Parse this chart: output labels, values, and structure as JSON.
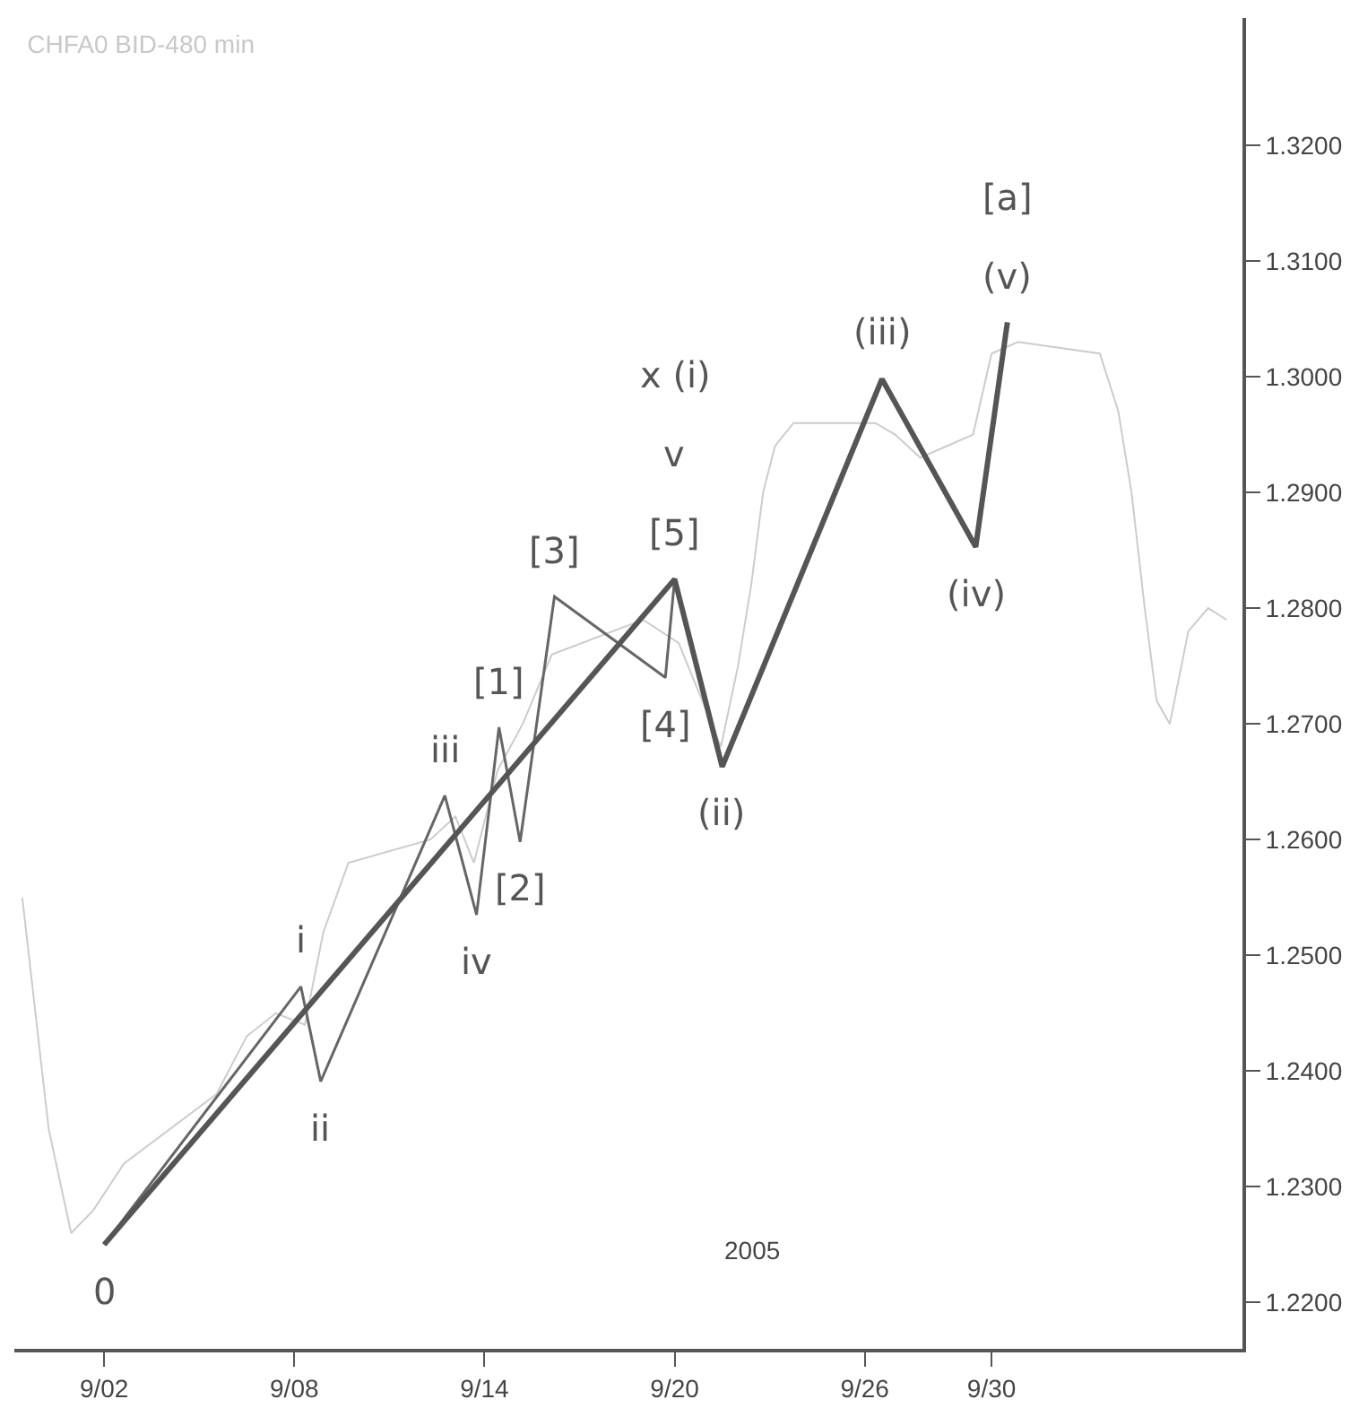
{
  "chart_data": {
    "type": "line",
    "title": "CHFA0 BID-480 min",
    "xlim": [
      "2005-08-30T04:00",
      "2005-10-07T22:00"
    ],
    "xticks": [
      {
        "value": "2005-09-02",
        "label": "9/02"
      },
      {
        "value": "2005-09-08",
        "label": "9/08"
      },
      {
        "value": "2005-09-14",
        "label": "9/14"
      },
      {
        "value": "2005-09-20",
        "label": "9/20"
      },
      {
        "value": "2005-09-26",
        "label": "9/26"
      },
      {
        "value": "2005-09-30",
        "label": "9/30"
      }
    ],
    "ylim": [
      1.216,
      1.331
    ],
    "yticks": [
      {
        "value": 1.22,
        "label": "1.2200"
      },
      {
        "value": 1.23,
        "label": "1.2300"
      },
      {
        "value": 1.24,
        "label": "1.2400"
      },
      {
        "value": 1.25,
        "label": "1.2500"
      },
      {
        "value": 1.26,
        "label": "1.2600"
      },
      {
        "value": 1.27,
        "label": "1.2700"
      },
      {
        "value": 1.28,
        "label": "1.2800"
      },
      {
        "value": 1.29,
        "label": "1.2900"
      },
      {
        "value": 1.3,
        "label": "1.3000"
      },
      {
        "value": 1.31,
        "label": "1.3100"
      },
      {
        "value": 1.32,
        "label": "1.3200"
      }
    ],
    "grid": false,
    "marker": "none",
    "line_style": "solid",
    "series": [
      {
        "color": "#cccccc",
        "x": [
          "2005-08-30T10:00",
          "2005-08-31T06:00",
          "2005-08-31T23:00",
          "2005-09-01T16:00",
          "2005-09-02T15:00",
          "2005-09-05T13:00",
          "2005-09-06T12:00",
          "2005-09-07T10:00",
          "2005-09-08T08:00",
          "2005-09-08T22:00",
          "2005-09-09T17:00",
          "2005-09-12T07:00",
          "2005-09-13T02:00",
          "2005-09-13T16:00",
          "2005-09-14T10:00",
          "2005-09-15T05:00",
          "2005-09-16T03:00",
          "2005-09-19T00:00",
          "2005-09-20T03:00",
          "2005-09-20T21:00",
          "2005-09-21T11:00",
          "2005-09-22T00:00",
          "2005-09-22T10:00",
          "2005-09-22T19:00",
          "2005-09-23T04:00",
          "2005-09-23T18:00",
          "2005-09-26T08:00",
          "2005-09-26T23:00",
          "2005-09-27T18:00",
          "2005-09-28T14:00",
          "2005-09-29T10:00",
          "2005-09-30T00:00",
          "2005-09-30T20:00",
          "2005-10-03T10:00",
          "2005-10-04T00:00",
          "2005-10-04T10:00",
          "2005-10-04T20:00",
          "2005-10-05T05:00",
          "2005-10-05T15:00",
          "2005-10-06T05:00",
          "2005-10-06T20:00",
          "2005-10-07T10:00"
        ],
        "values": [
          1.255,
          1.235,
          1.226,
          1.228,
          1.232,
          1.238,
          1.243,
          1.245,
          1.244,
          1.252,
          1.258,
          1.26,
          1.262,
          1.258,
          1.266,
          1.27,
          1.276,
          1.279,
          1.277,
          1.272,
          1.268,
          1.275,
          1.282,
          1.29,
          1.294,
          1.296,
          1.296,
          1.295,
          1.293,
          1.294,
          1.295,
          1.302,
          1.303,
          1.302,
          1.297,
          1.29,
          1.28,
          1.272,
          1.27,
          1.278,
          1.28,
          1.279
        ]
      },
      {
        "color": "#666666",
        "x": [
          "2005-09-02T00:00",
          "2005-09-08T05:00",
          "2005-09-08T20:00",
          "2005-09-12T18:00",
          "2005-09-13T18:00",
          "2005-09-14T11:00",
          "2005-09-15T03:00",
          "2005-09-16T05:00",
          "2005-09-19T17:00",
          "2005-09-20T00:00"
        ],
        "values": [
          1.225,
          1.2473,
          1.2391,
          1.2638,
          1.2535,
          1.2697,
          1.2598,
          1.281,
          1.274,
          1.2825
        ]
      },
      {
        "color": "#555555",
        "x": [
          "2005-09-02T00:00",
          "2005-09-20T00:00",
          "2005-09-21T12:00",
          "2005-09-26T13:00",
          "2005-09-29T12:00",
          "2005-09-30T12:00"
        ],
        "values": [
          1.225,
          1.2825,
          1.2663,
          1.2998,
          1.2853,
          1.3047
        ]
      }
    ],
    "annotations": [
      {
        "text": "0",
        "x": "2005-09-02T00:00",
        "y": 1.225
      },
      {
        "text": "i",
        "x": "2005-09-08T05:00",
        "y": 1.2473
      },
      {
        "text": "ii",
        "x": "2005-09-08T20:00",
        "y": 1.2391
      },
      {
        "text": "iii",
        "x": "2005-09-12T18:00",
        "y": 1.2638
      },
      {
        "text": "iv",
        "x": "2005-09-13T18:00",
        "y": 1.2535
      },
      {
        "text": "[1]",
        "x": "2005-09-14T11:00",
        "y": 1.2697
      },
      {
        "text": "[2]",
        "x": "2005-09-15T03:00",
        "y": 1.2598
      },
      {
        "text": "[3]",
        "x": "2005-09-16T05:00",
        "y": 1.281
      },
      {
        "text": "[4]",
        "x": "2005-09-19T17:00",
        "y": 1.274
      },
      {
        "text": "[5]",
        "x": "2005-09-20T00:00",
        "y": 1.2825
      },
      {
        "text": "v",
        "x": "2005-09-20T00:00",
        "y": 1.2825
      },
      "x (i)",
      {
        "text": "(ii)",
        "x": "2005-09-21T12:00",
        "y": 1.2663
      },
      {
        "text": "(iii)",
        "x": "2005-09-26T13:00",
        "y": 1.2998
      },
      {
        "text": "(iv)",
        "x": "2005-09-29T12:00",
        "y": 1.2853
      },
      {
        "text": "(v)",
        "x": "2005-09-30T12:00",
        "y": 1.3047
      },
      "[a]",
      "2005"
    ]
  }
}
